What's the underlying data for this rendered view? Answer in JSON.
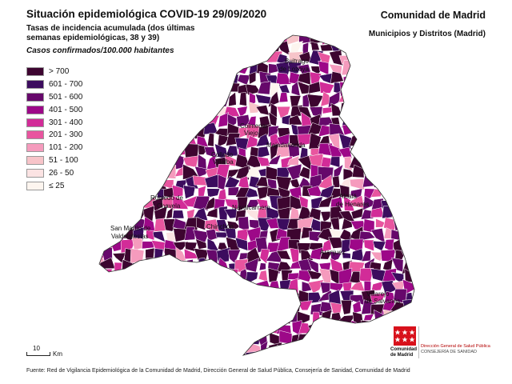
{
  "header": {
    "title": "Situación epidemiológica COVID-19  29/09/2020",
    "subtitle": "Tasas de incidencia acumulada (dos últimas semanas epidemiológicas, 38 y 39)",
    "units": "Casos confirmados/100.000 habitantes",
    "region": "Comunidad de Madrid",
    "region_sub": "Municipios y Distritos (Madrid)"
  },
  "legend": {
    "items": [
      {
        "label": "> 700",
        "color": "#3d0530"
      },
      {
        "label": "601 - 700",
        "color": "#3c0c5e"
      },
      {
        "label": "501 - 600",
        "color": "#66086b"
      },
      {
        "label": "401 - 500",
        "color": "#9d0888"
      },
      {
        "label": "301 - 400",
        "color": "#d22c98"
      },
      {
        "label": "201 - 300",
        "color": "#e8559f"
      },
      {
        "label": "101 - 200",
        "color": "#f59bbd"
      },
      {
        "label": "51 - 100",
        "color": "#f7c4c9"
      },
      {
        "label": "26 - 50",
        "color": "#fbe3e3"
      },
      {
        "label": "≤ 25",
        "color": "#fdf5ef"
      }
    ]
  },
  "map_labels": {
    "buitrago": "Buitrago",
    "buitrago2": "de Lozoya",
    "colmenar": "Colmenar",
    "colmenar2": "Viejo",
    "majadahonda": "Majadahonda",
    "navalcarnero": "Navalcarnero",
    "collado": "Collado",
    "collado2": "Villalba",
    "robledo": "Robledo de",
    "robledo2": "Chavela",
    "sanmartin": "San Martín de",
    "sanmartin2": "Valdeiglesias",
    "alcala": "Alcalá",
    "alcala2": "de Henares",
    "chinchon": "Chinchón",
    "aranjuez": "Aranjuez",
    "villarejo": "Villarejo",
    "villarejo2": "de Salvanés"
  },
  "scale": {
    "value": "10",
    "unit": "Km"
  },
  "logo": {
    "name": "Comunidad de Madrid"
  },
  "agency": {
    "line1": "Dirección General de Salud Pública",
    "line2": "CONSEJERÍA DE SANIDAD"
  },
  "source": "Fuente: Red de Vigilancia Epidemiológica de la Comunidad de Madrid, Dirección General de Salud Pública, Consejería de Sanidad, Comunidad de Madrid"
}
